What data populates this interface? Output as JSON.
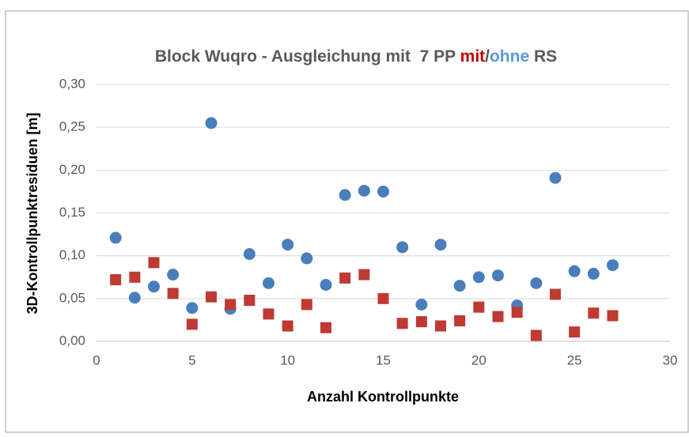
{
  "chart_data": {
    "type": "scatter",
    "title_prefix": "Block Wuqro - Ausgleichung mit  7 PP ",
    "title_separator": "/",
    "title_suffix": " RS",
    "xlabel": "Anzahl Kontrollpunkte",
    "ylabel": "3D-Kontrollpunktresiduen [m]",
    "x": [
      1,
      2,
      3,
      4,
      5,
      6,
      7,
      8,
      9,
      10,
      11,
      12,
      13,
      14,
      15,
      16,
      17,
      18,
      19,
      20,
      21,
      22,
      23,
      24,
      25,
      26,
      27
    ],
    "series": [
      {
        "name": "ohne",
        "color": "#4a7ebb",
        "marker": "circle",
        "values": [
          0.121,
          0.051,
          0.064,
          0.078,
          0.039,
          0.255,
          0.038,
          0.102,
          0.068,
          0.113,
          0.097,
          0.066,
          0.171,
          0.176,
          0.175,
          0.11,
          0.043,
          0.113,
          0.065,
          0.075,
          0.077,
          0.042,
          0.068,
          0.191,
          0.082,
          0.079,
          0.089
        ]
      },
      {
        "name": "mit",
        "color": "#be3a32",
        "marker": "square",
        "values": [
          0.072,
          0.075,
          0.092,
          0.056,
          0.02,
          0.052,
          0.043,
          0.048,
          0.032,
          0.018,
          0.043,
          0.016,
          0.074,
          0.078,
          0.05,
          0.021,
          0.023,
          0.018,
          0.024,
          0.04,
          0.029,
          0.034,
          0.007,
          0.055,
          0.011,
          0.033,
          0.03
        ]
      }
    ],
    "xlim": [
      0,
      30
    ],
    "xticks": [
      0,
      5,
      10,
      15,
      20,
      25,
      30
    ],
    "ylim": [
      0,
      0.3
    ],
    "yticks": [
      {
        "value": 0,
        "label": "0,00"
      },
      {
        "value": 0.05,
        "label": "0,05"
      },
      {
        "value": 0.1,
        "label": "0,10"
      },
      {
        "value": 0.15,
        "label": "0,15"
      },
      {
        "value": 0.2,
        "label": "0,20"
      },
      {
        "value": 0.25,
        "label": "0,25"
      },
      {
        "value": 0.3,
        "label": "0,30"
      }
    ],
    "grid": true
  }
}
